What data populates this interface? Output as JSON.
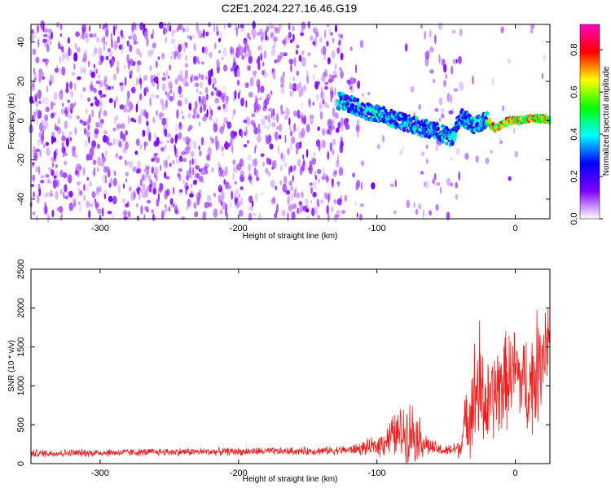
{
  "title": "C2E1.2024.227.16.46.G19",
  "chart_data": [
    {
      "type": "heatmap",
      "xlabel": "Height of straight line (km)",
      "ylabel": "Frequency (Hz)",
      "xlim": [
        -350,
        25
      ],
      "ylim": [
        -50,
        49
      ],
      "xticks": [
        -300,
        -200,
        -100,
        0
      ],
      "yticks": [
        -40,
        -20,
        0,
        20,
        40
      ],
      "colorbar": {
        "label": "Normalized spectral amplitude",
        "range": [
          0,
          0.92
        ],
        "ticks": [
          0.0,
          0.2,
          0.4,
          0.6,
          0.8
        ],
        "colormap": [
          "#ffffff",
          "#8000ff",
          "#0000ff",
          "#00ffff",
          "#00ff00",
          "#ffff00",
          "#ff0000",
          "#ff00c0"
        ]
      },
      "description_trace": {
        "x": [
          -125,
          -115,
          -105,
          -95,
          -85,
          -75,
          -65,
          -55,
          -45,
          -40,
          -35,
          -30,
          -25,
          -20,
          -15,
          -10,
          -5,
          0,
          5,
          10,
          15,
          20,
          25
        ],
        "y": [
          10,
          7,
          4,
          3,
          0,
          -2,
          -4,
          -6,
          -9,
          2,
          0,
          -2,
          -1,
          0,
          -4,
          -2,
          0,
          0,
          0,
          1,
          1,
          1,
          0
        ]
      }
    },
    {
      "type": "line",
      "xlabel": "Height of straight line (km)",
      "ylabel": "SNR (10 * v/v)",
      "xlim": [
        -350,
        25
      ],
      "ylim": [
        0,
        2500
      ],
      "xticks": [
        -300,
        -200,
        -100,
        0
      ],
      "yticks": [
        0,
        500,
        1000,
        1500,
        2000,
        2500
      ],
      "series": [
        {
          "color": "#ee2020",
          "envelope": {
            "x": [
              -350,
              -250,
              -150,
              -120,
              -100,
              -90,
              -80,
              -75,
              -70,
              -65,
              -60,
              -50,
              -40,
              -35,
              -30,
              -27,
              -25,
              -20,
              -15,
              -10,
              -5,
              0,
              5,
              10,
              15,
              20,
              25
            ],
            "base": [
              130,
              150,
              160,
              175,
              220,
              350,
              400,
              420,
              350,
              250,
              200,
              160,
              200,
              600,
              800,
              1000,
              900,
              700,
              900,
              1000,
              1100,
              1200,
              1050,
              1000,
              1150,
              1500,
              1700
            ],
            "amp": [
              60,
              60,
              60,
              70,
              150,
              300,
              450,
              500,
              350,
              200,
              120,
              80,
              150,
              500,
              800,
              1300,
              900,
              700,
              700,
              800,
              700,
              700,
              700,
              800,
              900,
              800,
              900
            ]
          }
        }
      ]
    }
  ]
}
